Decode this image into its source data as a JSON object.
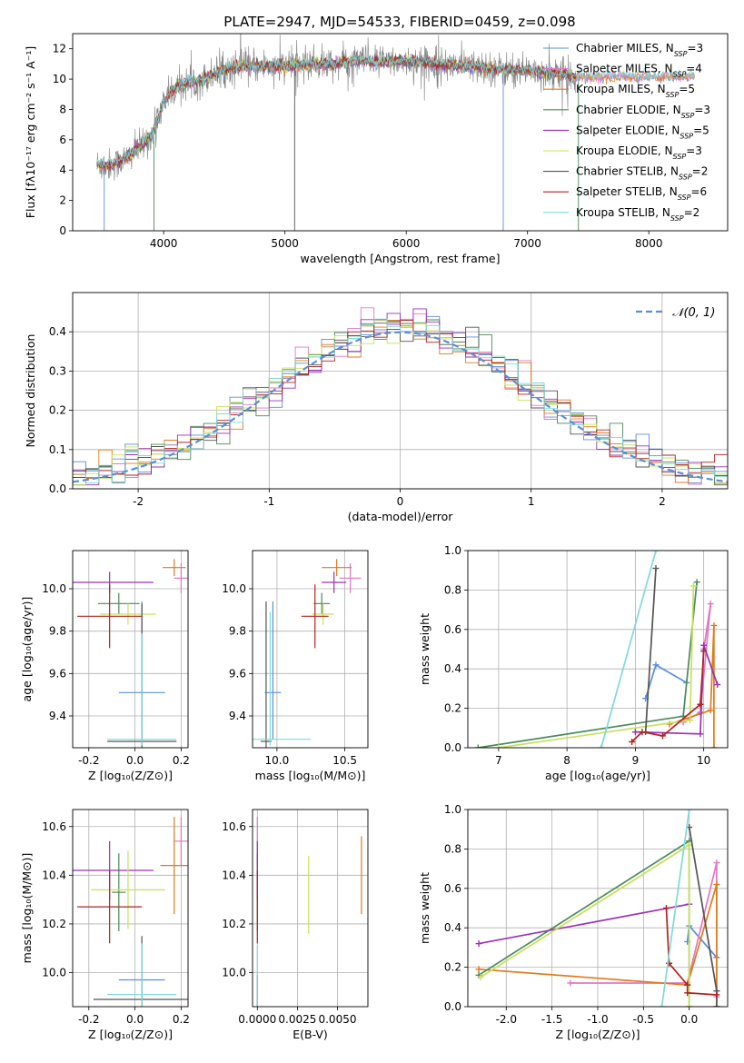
{
  "title": "PLATE=2947, MJD=54533, FIBERID=0459, z=0.098",
  "colors": {
    "chabrier_miles": "#5b8fd6",
    "salpeter_miles": "#e377c2",
    "kroupa_miles": "#e07b1a",
    "chabrier_elodie": "#4a8a5a",
    "salpeter_elodie": "#9b30b6",
    "kroupa_elodie": "#c8e05a",
    "chabrier_stelib": "#555555",
    "salpeter_stelib": "#b22222",
    "kroupa_stelib": "#7fdada",
    "normal": "#5b8fd6",
    "grid": "#b0b0b0"
  },
  "legend": [
    {
      "key": "chabrier_miles",
      "base": "Chabrier MILES, N",
      "sub": "SSP",
      "tail": "=3"
    },
    {
      "key": "salpeter_miles",
      "base": "Salpeter MILES, N",
      "sub": "SSP",
      "tail": "=4"
    },
    {
      "key": "kroupa_miles",
      "base": "Kroupa MILES, N",
      "sub": "SSP",
      "tail": "=5"
    },
    {
      "key": "chabrier_elodie",
      "base": "Chabrier ELODIE, N",
      "sub": "SSP",
      "tail": "=3"
    },
    {
      "key": "salpeter_elodie",
      "base": "Salpeter ELODIE, N",
      "sub": "SSP",
      "tail": "=5"
    },
    {
      "key": "kroupa_elodie",
      "base": "Kroupa ELODIE, N",
      "sub": "SSP",
      "tail": "=3"
    },
    {
      "key": "chabrier_stelib",
      "base": "Chabrier STELIB, N",
      "sub": "SSP",
      "tail": "=2"
    },
    {
      "key": "salpeter_stelib",
      "base": "Salpeter STELIB, N",
      "sub": "SSP",
      "tail": "=6"
    },
    {
      "key": "kroupa_stelib",
      "base": "Kroupa STELIB, N",
      "sub": "SSP",
      "tail": "=2"
    }
  ],
  "chart_data": [
    {
      "id": "spectrum",
      "type": "line",
      "xlabel": "wavelength [Angstrom, rest frame]",
      "ylabel": "Flux [fλ10⁻¹⁷ erg cm⁻² s⁻¹ A⁻¹]",
      "xlim": [
        3250,
        8650
      ],
      "ylim": [
        0,
        13
      ],
      "xticks": [
        4000,
        5000,
        6000,
        7000,
        8000
      ],
      "yticks": [
        0,
        2,
        4,
        6,
        8,
        10,
        12
      ],
      "continuum": {
        "x": [
          3450,
          3500,
          3600,
          3700,
          3800,
          3900,
          3950,
          4000,
          4100,
          4200,
          4300,
          4400,
          4500,
          4600,
          4800,
          5000,
          5200,
          5400,
          5600,
          5800,
          6000,
          6200,
          6400,
          6600,
          6800,
          7000,
          7200,
          7400
        ],
        "y": [
          4.4,
          4.3,
          4.4,
          4.8,
          5.5,
          6.3,
          7.2,
          8.6,
          9.4,
          9.8,
          9.9,
          10.3,
          10.6,
          10.8,
          10.9,
          10.8,
          11.0,
          11.0,
          11.2,
          11.1,
          11.2,
          11.0,
          10.9,
          10.8,
          10.6,
          10.6,
          10.4,
          10.2
        ]
      },
      "data_range": [
        3450,
        7400
      ],
      "model_range": [
        3450,
        8380
      ]
    },
    {
      "id": "residuals",
      "type": "step-histogram",
      "xlabel": "(data-model)/error",
      "ylabel": "Normed distribution",
      "xlim": [
        -2.5,
        2.5
      ],
      "ylim": [
        0,
        0.5
      ],
      "xticks": [
        -2,
        -1,
        0,
        1,
        2
      ],
      "yticks": [
        0.0,
        0.1,
        0.2,
        0.3,
        0.4
      ],
      "bin_width": 0.1,
      "normal": {
        "label": "𝒩(0, 1)",
        "mu": 0,
        "sigma": 1
      }
    },
    {
      "id": "age_vs_Z",
      "type": "errorbar",
      "xlabel": "Z [log₁₀(Z/Z⊙)]",
      "ylabel": "age  [log₁₀(age/yr)]",
      "xlim": [
        -0.27,
        0.23
      ],
      "ylim": [
        9.25,
        10.18
      ],
      "xticks": [
        -0.2,
        0.0,
        0.2
      ],
      "yticks": [
        9.4,
        9.6,
        9.8,
        10.0
      ],
      "points": [
        {
          "key": "chabrier_miles",
          "x": 0.03,
          "y": 9.51,
          "xerr": 0.1,
          "yerr": [
            0.22,
            0.43
          ]
        },
        {
          "key": "salpeter_miles",
          "x": 0.2,
          "y": 10.05,
          "xerr": 0.03,
          "yerr": 0.07
        },
        {
          "key": "kroupa_miles",
          "x": 0.17,
          "y": 10.1,
          "xerr": 0.05,
          "yerr": 0.04
        },
        {
          "key": "chabrier_elodie",
          "x": -0.07,
          "y": 9.93,
          "xerr": 0.09,
          "yerr": 0.05
        },
        {
          "key": "salpeter_elodie",
          "x": -0.11,
          "y": 10.03,
          "xerr": 0.19,
          "yerr": 0.05
        },
        {
          "key": "kroupa_elodie",
          "x": -0.03,
          "y": 9.88,
          "xerr": 0.12,
          "yerr": 0.05
        },
        {
          "key": "chabrier_stelib",
          "x": 0.03,
          "y": 9.28,
          "xerr": 0.15,
          "yerr": [
            0.03,
            0.65
          ]
        },
        {
          "key": "salpeter_stelib",
          "x": -0.11,
          "y": 9.87,
          "xerr": 0.14,
          "yerr": 0.15
        },
        {
          "key": "kroupa_stelib",
          "x": 0.03,
          "y": 9.29,
          "xerr": 0.15,
          "yerr": [
            0.03,
            0.5
          ]
        }
      ]
    },
    {
      "id": "age_vs_mass",
      "type": "errorbar",
      "xlabel": "mass [log₁₀(M/M⊙)]",
      "ylabel": "",
      "xlim": [
        9.82,
        10.67
      ],
      "ylim": [
        9.25,
        10.18
      ],
      "xticks": [
        10.0,
        10.5
      ],
      "yticks": [
        9.4,
        9.6,
        9.8,
        10.0
      ],
      "points": [
        {
          "key": "chabrier_miles",
          "x": 9.97,
          "y": 9.51,
          "xerr": 0.06,
          "yerr": [
            0.22,
            0.43
          ]
        },
        {
          "key": "salpeter_miles",
          "x": 10.54,
          "y": 10.05,
          "xerr": 0.08,
          "yerr": 0.07
        },
        {
          "key": "kroupa_miles",
          "x": 10.44,
          "y": 10.1,
          "xerr": 0.11,
          "yerr": 0.04
        },
        {
          "key": "chabrier_elodie",
          "x": 10.33,
          "y": 9.93,
          "xerr": 0.06,
          "yerr": 0.05
        },
        {
          "key": "salpeter_elodie",
          "x": 10.42,
          "y": 10.03,
          "xerr": 0.09,
          "yerr": 0.05
        },
        {
          "key": "kroupa_elodie",
          "x": 10.34,
          "y": 9.88,
          "xerr": 0.08,
          "yerr": 0.05
        },
        {
          "key": "chabrier_stelib",
          "x": 9.92,
          "y": 9.28,
          "xerr": 0.04,
          "yerr": [
            0.03,
            0.66
          ]
        },
        {
          "key": "salpeter_stelib",
          "x": 10.28,
          "y": 9.87,
          "xerr": 0.1,
          "yerr": 0.15
        },
        {
          "key": "kroupa_stelib",
          "x": 9.95,
          "y": 9.29,
          "xerr": 0.3,
          "yerr": [
            0.03,
            0.6
          ]
        }
      ]
    },
    {
      "id": "weight_vs_age",
      "type": "line",
      "xlabel": "age  [log₁₀(age/yr)]",
      "ylabel": "mass weight",
      "xlim": [
        6.55,
        10.35
      ],
      "ylim": [
        0,
        1
      ],
      "xticks": [
        7,
        8,
        9,
        10
      ],
      "yticks": [
        0.0,
        0.2,
        0.4,
        0.6,
        0.8,
        1.0
      ],
      "series": [
        {
          "key": "chabrier_miles",
          "x": [
            9.15,
            9.3,
            9.75
          ],
          "y": [
            0.25,
            0.42,
            0.33
          ]
        },
        {
          "key": "salpeter_miles",
          "x": [
            9.7,
            9.95,
            10.1,
            10.0
          ],
          "y": [
            0.13,
            0.18,
            0.73,
            0.5
          ]
        },
        {
          "key": "kroupa_miles",
          "x": [
            9.5,
            10.1,
            10.15,
            10.15
          ],
          "y": [
            0.12,
            0.19,
            0.62,
            0.0
          ]
        },
        {
          "key": "chabrier_elodie",
          "x": [
            6.7,
            9.7,
            9.9
          ],
          "y": [
            0.0,
            0.16,
            0.84
          ]
        },
        {
          "key": "salpeter_elodie",
          "x": [
            9.0,
            9.95,
            10.0,
            10.2
          ],
          "y": [
            0.08,
            0.07,
            0.52,
            0.32
          ]
        },
        {
          "key": "kroupa_elodie",
          "x": [
            7.0,
            9.8,
            9.85
          ],
          "y": [
            0.0,
            0.14,
            0.82
          ]
        },
        {
          "key": "chabrier_stelib",
          "x": [
            9.15,
            9.3
          ],
          "y": [
            0.08,
            0.91
          ]
        },
        {
          "key": "salpeter_stelib",
          "x": [
            8.95,
            9.1,
            9.4,
            9.95,
            10.0
          ],
          "y": [
            0.03,
            0.08,
            0.06,
            0.22,
            0.49
          ]
        },
        {
          "key": "kroupa_stelib",
          "x": [
            8.5,
            9.3
          ],
          "y": [
            0.0,
            1.0
          ]
        }
      ]
    },
    {
      "id": "mass_vs_Z",
      "type": "errorbar",
      "xlabel": "Z [log₁₀(Z/Z⊙)]",
      "ylabel": "mass [log₁₀(M/M⊙)]",
      "xlim": [
        -0.27,
        0.23
      ],
      "ylim": [
        9.86,
        10.67
      ],
      "xticks": [
        -0.2,
        0.0,
        0.2
      ],
      "yticks": [
        10.0,
        10.2,
        10.4,
        10.6
      ],
      "points": [
        {
          "key": "chabrier_miles",
          "x": 0.03,
          "y": 9.97,
          "xerr": 0.1,
          "yerr": 0.0
        },
        {
          "key": "salpeter_miles",
          "x": 0.2,
          "y": 10.54,
          "xerr": 0.03,
          "yerr": 0.1
        },
        {
          "key": "kroupa_miles",
          "x": 0.17,
          "y": 10.44,
          "xerr": 0.06,
          "yerr": 0.2
        },
        {
          "key": "chabrier_elodie",
          "x": -0.07,
          "y": 10.33,
          "xerr": 0.03,
          "yerr": 0.16
        },
        {
          "key": "salpeter_elodie",
          "x": -0.11,
          "y": 10.42,
          "xerr": 0.19,
          "yerr": 0.12
        },
        {
          "key": "kroupa_elodie",
          "x": -0.03,
          "y": 10.34,
          "xerr": 0.16,
          "yerr": 0.16
        },
        {
          "key": "chabrier_stelib",
          "x": 0.03,
          "y": 9.89,
          "xerr": 0.21,
          "yerr": 0.26
        },
        {
          "key": "salpeter_stelib",
          "x": -0.11,
          "y": 10.27,
          "xerr": 0.14,
          "yerr": 0.15
        },
        {
          "key": "kroupa_stelib",
          "x": 0.03,
          "y": 9.91,
          "xerr": 0.15,
          "yerr": 0.21
        }
      ]
    },
    {
      "id": "mass_vs_EBV",
      "type": "errorbar",
      "xlabel": "E(B-V)",
      "ylabel": "",
      "xlim": [
        -0.0003,
        0.0069
      ],
      "ylim": [
        9.86,
        10.67
      ],
      "xticks": [
        0.0,
        0.0025,
        0.005
      ],
      "xticklabels": [
        "0.0000",
        "0.0025",
        "0.0050"
      ],
      "yticks": [
        10.0,
        10.2,
        10.4,
        10.6
      ],
      "points": [
        {
          "key": "chabrier_miles",
          "x": 0.0,
          "y": 9.97,
          "xerr": 0,
          "yerr": 0.0
        },
        {
          "key": "salpeter_miles",
          "x": 0.0,
          "y": 10.54,
          "xerr": 0,
          "yerr": 0.1
        },
        {
          "key": "kroupa_miles",
          "x": 0.0065,
          "y": 10.4,
          "xerr": 0,
          "yerr": 0.16
        },
        {
          "key": "chabrier_elodie",
          "x": 0.0,
          "y": 10.33,
          "xerr": 0,
          "yerr": 0.16
        },
        {
          "key": "salpeter_elodie",
          "x": 0.0,
          "y": 10.42,
          "xerr": 0,
          "yerr": 0.12
        },
        {
          "key": "kroupa_elodie",
          "x": 0.0032,
          "y": 10.32,
          "xerr": 0,
          "yerr": 0.16
        },
        {
          "key": "chabrier_stelib",
          "x": 0.0,
          "y": 9.89,
          "xerr": 0,
          "yerr": 0.1
        },
        {
          "key": "salpeter_stelib",
          "x": 0.0,
          "y": 10.27,
          "xerr": 0,
          "yerr": 0.15
        },
        {
          "key": "kroupa_stelib",
          "x": 0.0,
          "y": 9.95,
          "xerr": 0,
          "yerr": 0.16
        }
      ]
    },
    {
      "id": "weight_vs_Z",
      "type": "line",
      "xlabel": "Z [log₁₀(Z/Z⊙)]",
      "ylabel": "mass weight",
      "xlim": [
        -2.42,
        0.42
      ],
      "ylim": [
        0,
        1
      ],
      "xticks": [
        -2.0,
        -1.5,
        -1.0,
        -0.5,
        0.0
      ],
      "yticks": [
        0.0,
        0.2,
        0.4,
        0.6,
        0.8,
        1.0
      ],
      "series": [
        {
          "key": "chabrier_miles",
          "x": [
            -0.02,
            0.0,
            0.3
          ],
          "y": [
            0.33,
            0.41,
            0.25
          ]
        },
        {
          "key": "salpeter_miles",
          "x": [
            -1.3,
            -0.02,
            0.3,
            0.3
          ],
          "y": [
            0.12,
            0.12,
            0.73,
            0.05
          ]
        },
        {
          "key": "kroupa_miles",
          "x": [
            -2.3,
            -0.02,
            0.3,
            0.3
          ],
          "y": [
            0.19,
            0.11,
            0.62,
            0.0
          ]
        },
        {
          "key": "chabrier_elodie",
          "x": [
            -2.3,
            0.0,
            0.0
          ],
          "y": [
            0.16,
            0.84,
            0.0
          ]
        },
        {
          "key": "salpeter_elodie",
          "x": [
            -2.3,
            0.0
          ],
          "y": [
            0.32,
            0.52
          ]
        },
        {
          "key": "kroupa_elodie",
          "x": [
            -2.28,
            0.0,
            0.0
          ],
          "y": [
            0.15,
            0.82,
            0.0
          ]
        },
        {
          "key": "chabrier_stelib",
          "x": [
            0.0,
            0.3,
            0.3
          ],
          "y": [
            0.91,
            0.08,
            0.0
          ]
        },
        {
          "key": "salpeter_stelib",
          "x": [
            -0.25,
            -0.22,
            -0.02,
            -0.02,
            0.3
          ],
          "y": [
            0.5,
            0.22,
            0.11,
            0.07,
            0.06
          ]
        },
        {
          "key": "kroupa_stelib",
          "x": [
            -0.3,
            0.0
          ],
          "y": [
            0.0,
            1.0
          ]
        }
      ]
    }
  ]
}
